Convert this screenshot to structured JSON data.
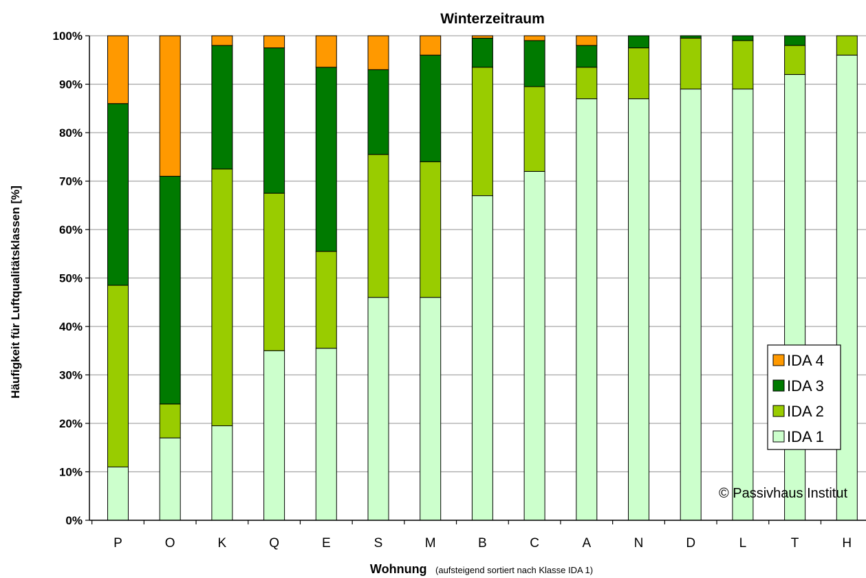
{
  "chart_data": {
    "type": "bar",
    "stacked": true,
    "title": "Winterzeitraum",
    "ylabel": "Häufigkeit für Luftqualitätsklassen [%]",
    "xlabel": "Wohnung",
    "xlabel_note": "(aufsteigend sortiert nach Klasse IDA 1)",
    "ylim": [
      0,
      100
    ],
    "yticks": [
      "0%",
      "10%",
      "20%",
      "30%",
      "40%",
      "50%",
      "60%",
      "70%",
      "80%",
      "90%",
      "100%"
    ],
    "grid": true,
    "legend_position": "bottom-right",
    "categories": [
      "P",
      "O",
      "K",
      "Q",
      "E",
      "S",
      "M",
      "B",
      "C",
      "A",
      "N",
      "D",
      "L",
      "T",
      "H"
    ],
    "series": [
      {
        "name": "IDA 1",
        "color": "#ccffcc",
        "values": [
          11,
          17,
          19.5,
          35,
          35.5,
          46,
          46,
          67,
          72,
          87,
          87,
          89,
          89,
          92,
          96
        ]
      },
      {
        "name": "IDA 2",
        "color": "#99cc00",
        "values": [
          37.5,
          7,
          53,
          32.5,
          20,
          29.5,
          28,
          26.5,
          17.5,
          6.5,
          10.5,
          10.5,
          10,
          6,
          4
        ]
      },
      {
        "name": "IDA 3",
        "color": "#007a00",
        "values": [
          37.5,
          47,
          25.5,
          30,
          38,
          17.5,
          22,
          6,
          9.5,
          4.5,
          2.5,
          0.5,
          1,
          2,
          0
        ]
      },
      {
        "name": "IDA 4",
        "color": "#ff9900",
        "values": [
          14,
          29,
          2,
          2.5,
          6.5,
          7,
          4,
          0.5,
          1,
          2,
          0,
          0,
          0,
          0,
          0
        ]
      }
    ],
    "copyright": "© Passivhaus Institut"
  }
}
